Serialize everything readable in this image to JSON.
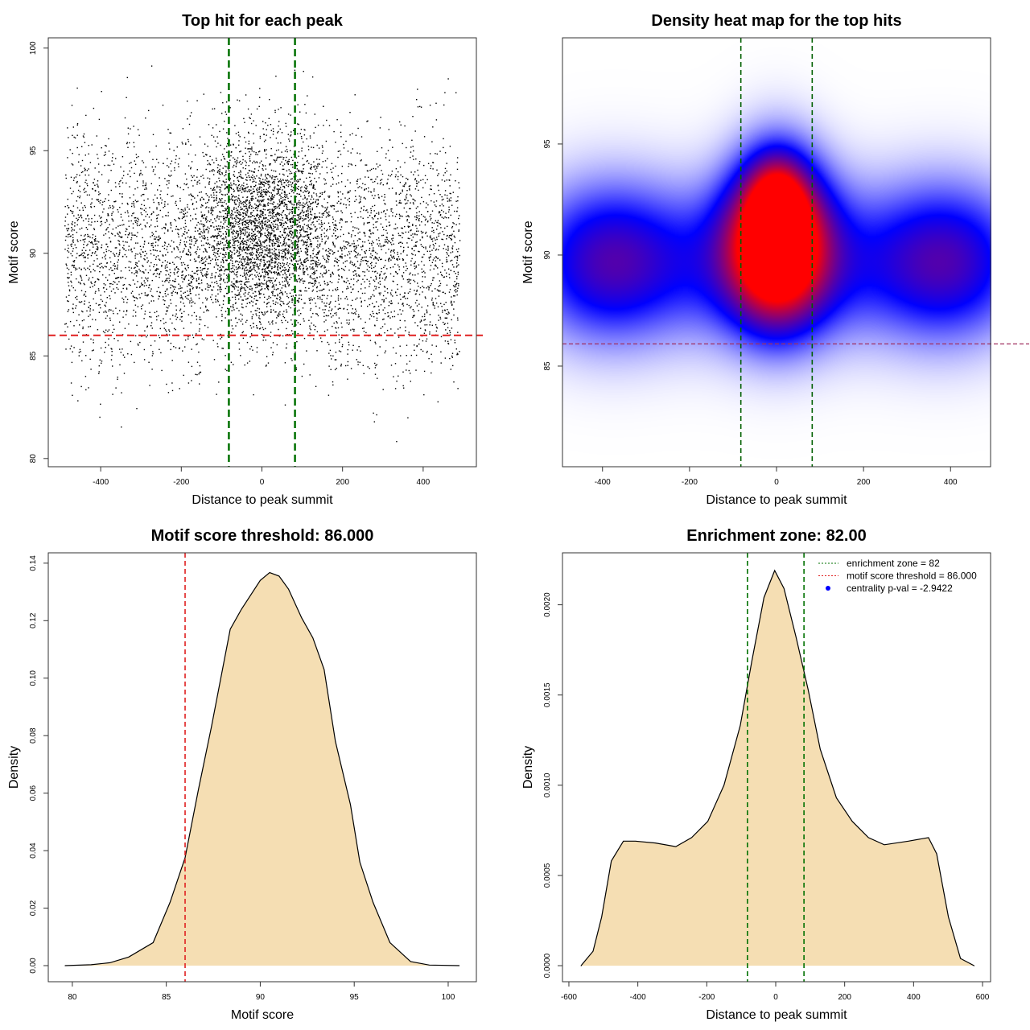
{
  "chart_data": [
    {
      "type": "scatter",
      "title": "Top hit for each peak",
      "xlabel": "Distance to peak summit",
      "ylabel": "Motif score",
      "xticks": [
        -400,
        -200,
        0,
        200,
        400
      ],
      "yticks": [
        80,
        85,
        90,
        95,
        100
      ],
      "xlim": [
        -530,
        532
      ],
      "ylim": [
        79.6,
        100.5
      ],
      "points_generator": {
        "count": 7000,
        "x_uniform_range": [
          -490,
          490
        ],
        "central_fraction": 0.3,
        "central_sd": 80,
        "y_mean": 90,
        "y_sd": 2.8,
        "y_range": [
          80.5,
          99.7
        ]
      },
      "vlines": [
        -82,
        82
      ],
      "vline_color": "#007000",
      "hline": 86,
      "hline_color": "#e02020"
    },
    {
      "type": "heatmap",
      "title": "Density heat map for the top hits",
      "xlabel": "Distance to peak summit",
      "ylabel": "Motif score",
      "xticks": [
        -400,
        -200,
        0,
        200,
        400
      ],
      "yticks": [
        85,
        90,
        95
      ],
      "xlim": [
        -492,
        492
      ],
      "ylim": [
        80.47,
        99.78
      ],
      "colors": [
        "#ffffff",
        "#0000ff",
        "#ff0000"
      ],
      "vlines": [
        -82,
        82
      ],
      "vline_color": "#006000",
      "hline": 86,
      "hline_color": "#a03060"
    },
    {
      "type": "area",
      "title": "Motif score threshold: 86.000",
      "xlabel": "Motif score",
      "ylabel": "Density",
      "xticks": [
        80,
        85,
        90,
        95,
        100
      ],
      "yticks": [
        0.0,
        0.02,
        0.04,
        0.06,
        0.08,
        0.1,
        0.12,
        0.14
      ],
      "ytick_labels": [
        "0.00",
        "0.02",
        "0.04",
        "0.06",
        "0.08",
        "0.10",
        "0.12",
        "0.14"
      ],
      "xlim": [
        78.72,
        101.5
      ],
      "ylim": [
        -0.0056,
        0.1436
      ],
      "fill": "#f5deb3",
      "vline": 86,
      "vline_color": "#e02020",
      "x": [
        79.6,
        81,
        82,
        83,
        84.3,
        85.2,
        86,
        86.7,
        87.4,
        88.4,
        89,
        90,
        90.5,
        91,
        91.5,
        92.2,
        92.8,
        93.4,
        94,
        94.8,
        95.3,
        96,
        96.9,
        98,
        99,
        100.6
      ],
      "y": [
        0,
        0.0003,
        0.001,
        0.003,
        0.008,
        0.022,
        0.0375,
        0.061,
        0.083,
        0.117,
        0.124,
        0.134,
        0.1367,
        0.1355,
        0.131,
        0.121,
        0.114,
        0.103,
        0.078,
        0.056,
        0.036,
        0.022,
        0.008,
        0.0014,
        0.0002,
        0
      ]
    },
    {
      "type": "area",
      "title": "Enrichment zone: 82.00",
      "xlabel": "Distance to peak summit",
      "ylabel": "Density",
      "xticks": [
        -600,
        -400,
        -200,
        0,
        200,
        400,
        600
      ],
      "yticks": [
        0,
        0.0005,
        0.001,
        0.0015,
        0.002
      ],
      "ytick_labels": [
        "0.0000",
        "0.0005",
        "0.0010",
        "0.0015",
        "0.0020"
      ],
      "xlim": [
        -618.6,
        623.3
      ],
      "ylim": [
        -8.89e-05,
        0.002288
      ],
      "fill": "#f5deb3",
      "vlines": [
        -82,
        82
      ],
      "vline_color": "#007000",
      "x": [
        -565,
        -530,
        -505,
        -477,
        -442,
        -407,
        -349,
        -290,
        -244,
        -197,
        -150,
        -103,
        -69,
        -34,
        -3,
        24,
        59,
        94,
        129,
        176,
        222,
        269,
        315,
        385,
        443,
        467,
        501,
        536,
        576
      ],
      "y": [
        0,
        8e-05,
        0.00027,
        0.00058,
        0.00069,
        0.00069,
        0.00068,
        0.00066,
        0.00071,
        0.0008,
        0.001,
        0.00133,
        0.00169,
        0.00204,
        0.00219,
        0.00209,
        0.00182,
        0.00153,
        0.0012,
        0.00093,
        0.0008,
        0.00071,
        0.00067,
        0.00069,
        0.00071,
        0.00062,
        0.00027,
        4e-05,
        0
      ],
      "legend": {
        "position": "top-right",
        "items": [
          {
            "label": "enrichment zone = 82",
            "color": "#007000",
            "style": "dotted-line"
          },
          {
            "label": "motif score threshold = 86.000",
            "color": "#e02020",
            "style": "dotted-line"
          },
          {
            "label": "centrality p-val = -2.9422",
            "color": "#0000ff",
            "style": "point"
          }
        ]
      }
    }
  ]
}
